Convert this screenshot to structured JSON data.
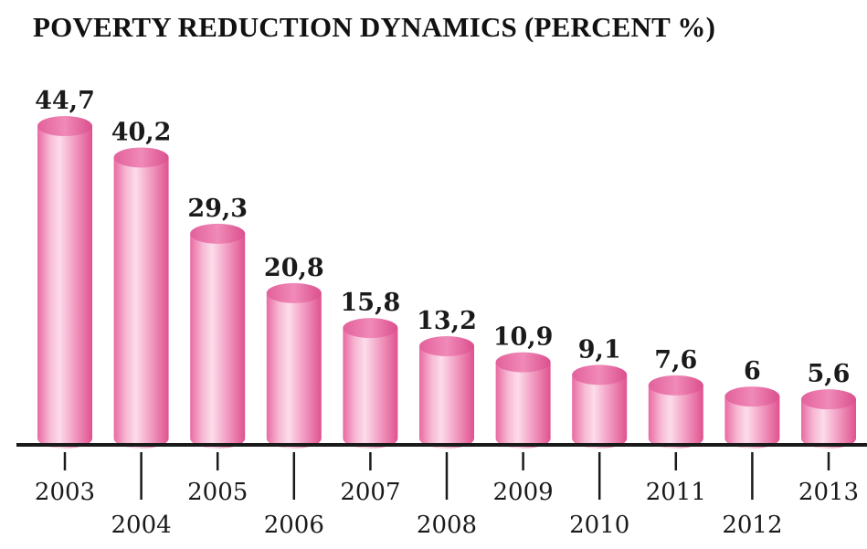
{
  "title": "POVERTY REDUCTION DYNAMICS (PERCENT %)",
  "chart_data": {
    "type": "bar",
    "title": "POVERTY REDUCTION DYNAMICS (PERCENT %)",
    "categories": [
      "2003",
      "2004",
      "2005",
      "2006",
      "2007",
      "2008",
      "2009",
      "2010",
      "2011",
      "2012",
      "2013"
    ],
    "values": [
      44.7,
      40.2,
      29.3,
      20.8,
      15.8,
      13.2,
      10.9,
      9.1,
      7.6,
      6,
      5.6
    ],
    "value_labels": [
      "44,7",
      "40,2",
      "29,3",
      "20,8",
      "15,8",
      "13,2",
      "10,9",
      "9,1",
      "7,6",
      "6",
      "5,6"
    ],
    "xlabel": "",
    "ylabel": "",
    "ylim": [
      0,
      50
    ],
    "grid": false,
    "bar_color": "#ee7fb0",
    "bar_highlight": "#fbd7e7",
    "bar_top_color": "#ec6aa3",
    "axis_color": "#1a1a1a"
  }
}
